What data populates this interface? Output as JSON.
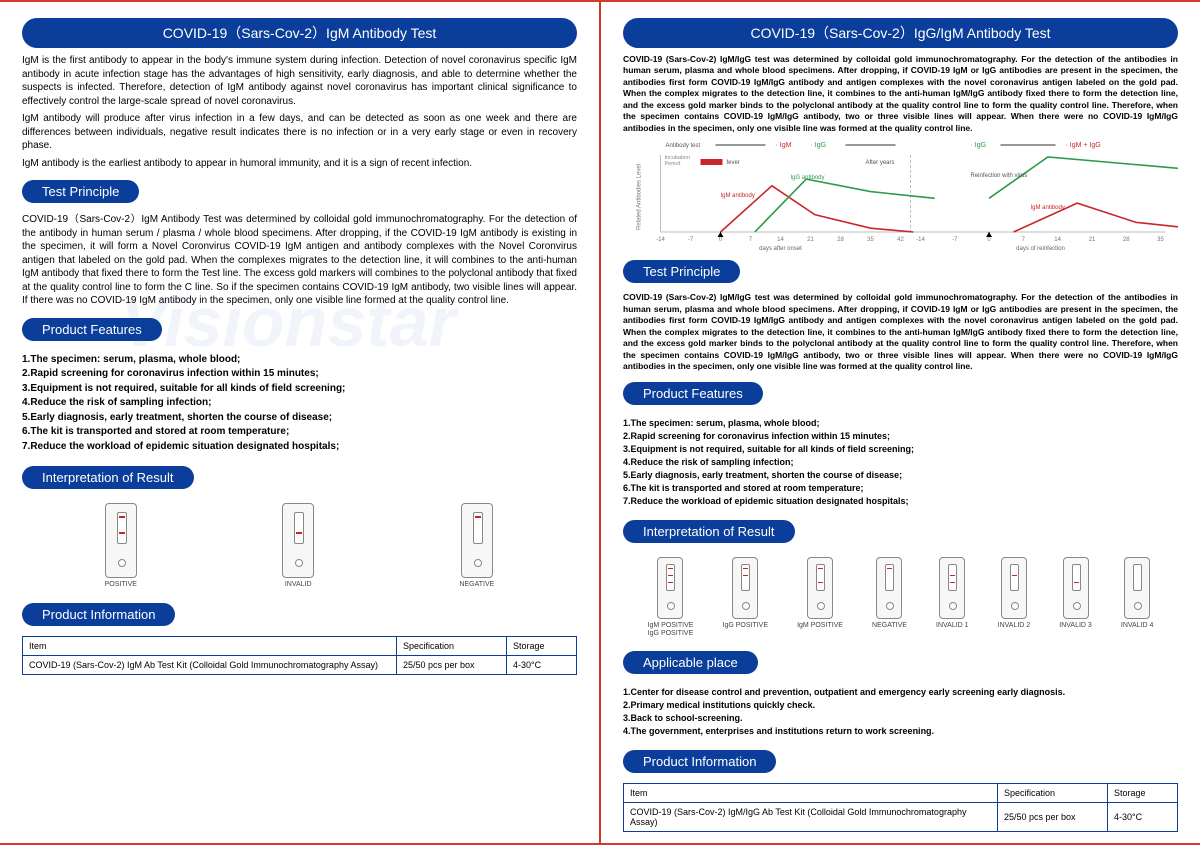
{
  "left": {
    "title": "COVID-19（Sars-Cov-2）IgM Antibody Test",
    "intro1": "    IgM is the first antibody to appear in the body's immune system during infection. Detection of novel coronavirus specific IgM antibody in acute infection stage has the advantages of high sensitivity, early diagnosis, and able to determine whether the suspects is infected. Therefore, detection of IgM antibody against novel coronavirus has important clinical significance to effectively control the large-scale spread of novel coronavirus.",
    "intro2": "    IgM antibody will produce after virus infection in a few days, and can be detected as soon as one week and there are differences between individuals, negative result indicates there is no infection or in a very early stage or even in recovery phase.",
    "intro3": "    IgM antibody is the earliest antibody to appear in humoral immunity, and it is a sign of recent infection.",
    "principle_label": "Test Principle",
    "principle_body": "    COVID-19（Sars-Cov-2）IgM Antibody Test was determined by colloidal gold immunochromatography. For the detection of the antibody in human serum / plasma / whole blood specimens. After dropping, if the COVID-19 IgM antibody is existing in the specimen, it will form a Novel Coronvirus COVID-19 IgM antigen and antibody complexes with the Novel Coronvirus antigen that labeled on the gold pad. When the complexes migrates to the detection line, it will combines to the anti-human IgM antibody that fixed there to form the Test line. The excess gold markers will combines to the polyclonal antibody that fixed at the quality control line to form the C line. So if the specimen contains COVID-19 IgM antibody, two visible lines will appear. If there was no COVID-19 IgM antibody in the specimen, only one visible line formed at the quality control line.",
    "features_label": "Product Features",
    "features": "1.The specimen: serum, plasma, whole blood;\n2.Rapid screening for coronavirus infection within 15 minutes;\n3.Equipment is not required, suitable for all kinds of field screening;\n4.Reduce the risk of sampling infection;\n5.Early diagnosis, early treatment, shorten the course of disease;\n6.The kit is transported and stored at room temperature;\n7.Reduce the workload of epidemic situation designated hospitals;",
    "interp_label": "Interpretation of Result",
    "cassettes": [
      {
        "label": "POSITIVE",
        "lines": [
          "c",
          "m"
        ]
      },
      {
        "label": "INVALID",
        "lines": [
          "m"
        ]
      },
      {
        "label": "NEGATIVE",
        "lines": [
          "c"
        ]
      }
    ],
    "prodinfo_label": "Product Information",
    "table": {
      "cols": [
        "Item",
        "Specification",
        "Storage"
      ],
      "row": [
        "COVID-19 (Sars-Cov-2) IgM  Ab Test Kit (Colloidal Gold Immunochromatography Assay)",
        "25/50 pcs per box",
        "4-30°C"
      ]
    }
  },
  "right": {
    "title": "COVID-19（Sars-Cov-2）IgG/IgM Antibody Test",
    "intro": "    COVID-19 (Sars-Cov-2) IgM/IgG test was determined by colloidal gold immunochromatography. For the detection of the antibodies in human serum, plasma and whole blood specimens. After dropping, if COVID-19 IgM or IgG antibodies are present in the specimen, the antibodies first form COVID-19 IgM/IgG antibody and antigen complexes with the novel coronavirus antigen labeled on the gold pad. When the complex migrates to the detection line, it combines to the anti-human IgM/IgG antibody fixed there to form the detection line, and the excess gold marker binds to the polyclonal antibody at the quality control line to form the quality control line. Therefore, when the specimen contains COVID-19 IgM/IgG antibody, two or three visible lines will appear. When there were no COVID-19 IgM/IgG antibodies in the specimen, only one visible line was formed at the quality control line.",
    "chart": {
      "legend": [
        "IgM",
        "IgG",
        "IgM + IgG"
      ],
      "annotations": {
        "fever": "fever",
        "igm": "IgM antibody",
        "igg": "IgG antibody",
        "after": "After years",
        "reinf": "Reinfection with virus"
      },
      "axis_left": "Related Antibodies Level",
      "axis_top": "Antibody test",
      "x1_label": "days after onset",
      "x2_label": "days of reinfection",
      "x1_ticks": [
        -14,
        -7,
        0,
        7,
        14,
        21,
        28,
        35,
        42
      ],
      "x2_ticks": [
        -14,
        -7,
        0,
        7,
        14,
        21,
        28,
        35
      ],
      "igm_color": "#c8262a",
      "igg_color": "#2e9b4a",
      "bar_color": "#c8262a",
      "grid_color": "#bdbdbd",
      "bg_color": "#ffffff",
      "incubation": "Incubation Period",
      "igm1": [
        [
          0,
          0
        ],
        [
          12,
          48
        ],
        [
          22,
          18
        ],
        [
          35,
          4
        ],
        [
          45,
          0
        ]
      ],
      "igg1": [
        [
          8,
          0
        ],
        [
          20,
          55
        ],
        [
          35,
          42
        ],
        [
          50,
          35
        ]
      ],
      "igg2": [
        [
          0,
          35
        ],
        [
          12,
          78
        ],
        [
          30,
          70
        ],
        [
          48,
          62
        ]
      ],
      "igm2": [
        [
          5,
          0
        ],
        [
          18,
          30
        ],
        [
          30,
          10
        ],
        [
          45,
          2
        ]
      ]
    },
    "principle_label": "Test Principle",
    "principle_body": "    COVID-19 (Sars-Cov-2) IgM/IgG test was determined by colloidal gold immunochromatography. For the detection of the antibodies in human serum, plasma and whole blood specimens. After dropping, if COVID-19 IgM or IgG antibodies are present in the specimen, the antibodies first form COVID-19 IgM/IgG antibody and antigen complexes with the novel coronavirus antigen labeled on the gold pad. When the complex migrates to the detection line, it combines to the anti-human IgM/IgG antibody fixed there to form the detection line, and the excess gold marker binds to the polyclonal antibody at the quality control line to form the quality control line. Therefore, when the specimen contains COVID-19 IgM/IgG antibody, two or three visible lines will appear. When there were no COVID-19 IgM/IgG antibodies in the specimen, only one visible line was formed at the quality control line.",
    "features_label": "Product Features",
    "features": "1.The specimen: serum, plasma, whole blood;\n2.Rapid screening for coronavirus infection within 15 minutes;\n3.Equipment is not required, suitable for all kinds of field screening;\n4.Reduce the risk of sampling infection;\n5.Early diagnosis, early treatment, shorten the course of disease;\n6.The kit is transported and stored at room temperature;\n7.Reduce the workload of epidemic situation designated hospitals;",
    "interp_label": "Interpretation of Result",
    "cassettes": [
      {
        "label": "IgM POSITIVE\nIgG POSITIVE",
        "lines": [
          "c",
          "g",
          "m"
        ]
      },
      {
        "label": "IgG POSITIVE",
        "lines": [
          "c",
          "g"
        ]
      },
      {
        "label": "IgM POSITIVE",
        "lines": [
          "c",
          "m"
        ]
      },
      {
        "label": "NEGATIVE",
        "lines": [
          "c"
        ]
      },
      {
        "label": "INVALID 1",
        "lines": [
          "g",
          "m"
        ]
      },
      {
        "label": "INVALID 2",
        "lines": [
          "g"
        ]
      },
      {
        "label": "INVALID 3",
        "lines": [
          "m"
        ]
      },
      {
        "label": "INVALID 4",
        "lines": []
      }
    ],
    "applicable_label": "Applicable place",
    "applicable": "1.Center for disease control and prevention, outpatient and emergency early screening early diagnosis.\n2.Primary medical institutions quickly check.\n3.Back to school-screening.\n4.The government, enterprises and institutions return to work screening.",
    "prodinfo_label": "Product Information",
    "table": {
      "cols": [
        "Item",
        "Specification",
        "Storage"
      ],
      "row": [
        "COVID-19 (Sars-Cov-2) IgM/IgG  Ab Test Kit (Colloidal Gold Immunochromatography Assay)",
        "25/50 pcs per box",
        "4-30°C"
      ]
    }
  },
  "watermark": "Visionstar"
}
